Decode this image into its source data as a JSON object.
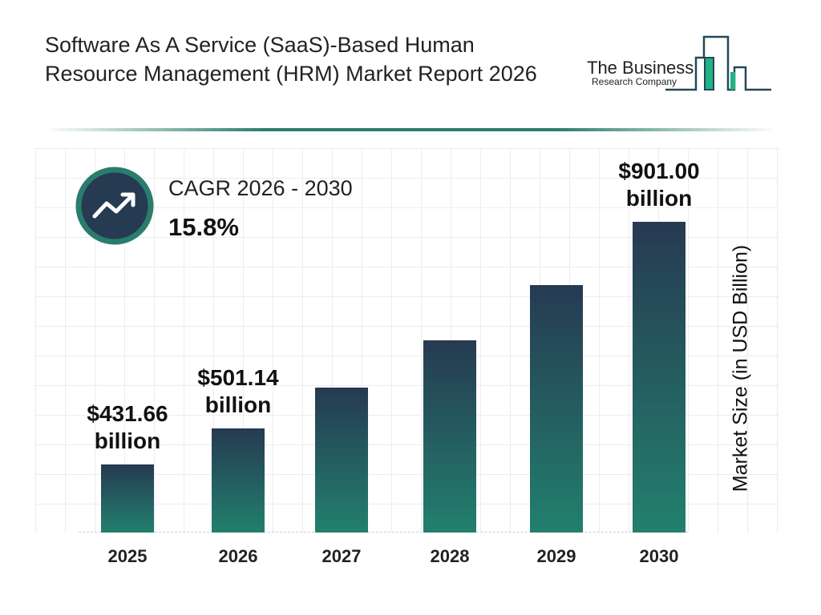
{
  "title": "Software As A Service (SaaS)-Based Human Resource Management (HRM) Market Report 2026",
  "logo": {
    "line1": "The Business",
    "line2": "Research Company"
  },
  "cagr": {
    "label": "CAGR 2026 - 2030",
    "value": "15.8%",
    "icon": "trending-up-icon"
  },
  "colors": {
    "bar_top": "#263a52",
    "bar_bottom": "#22806d",
    "accent": "#2a7d6c"
  },
  "chart_data": {
    "type": "bar",
    "categories": [
      "2025",
      "2026",
      "2027",
      "2028",
      "2029",
      "2030"
    ],
    "values": [
      431.66,
      501.14,
      580.3,
      672.0,
      778.2,
      901.0
    ],
    "data_labels": [
      {
        "line1": "$431.66",
        "line2": "billion"
      },
      {
        "line1": "$501.14",
        "line2": "billion"
      },
      null,
      null,
      null,
      {
        "line1": "$901.00",
        "line2": "billion"
      }
    ],
    "ylabel": "Market Size (in USD Billion)",
    "xlabel": "",
    "grid": true
  }
}
